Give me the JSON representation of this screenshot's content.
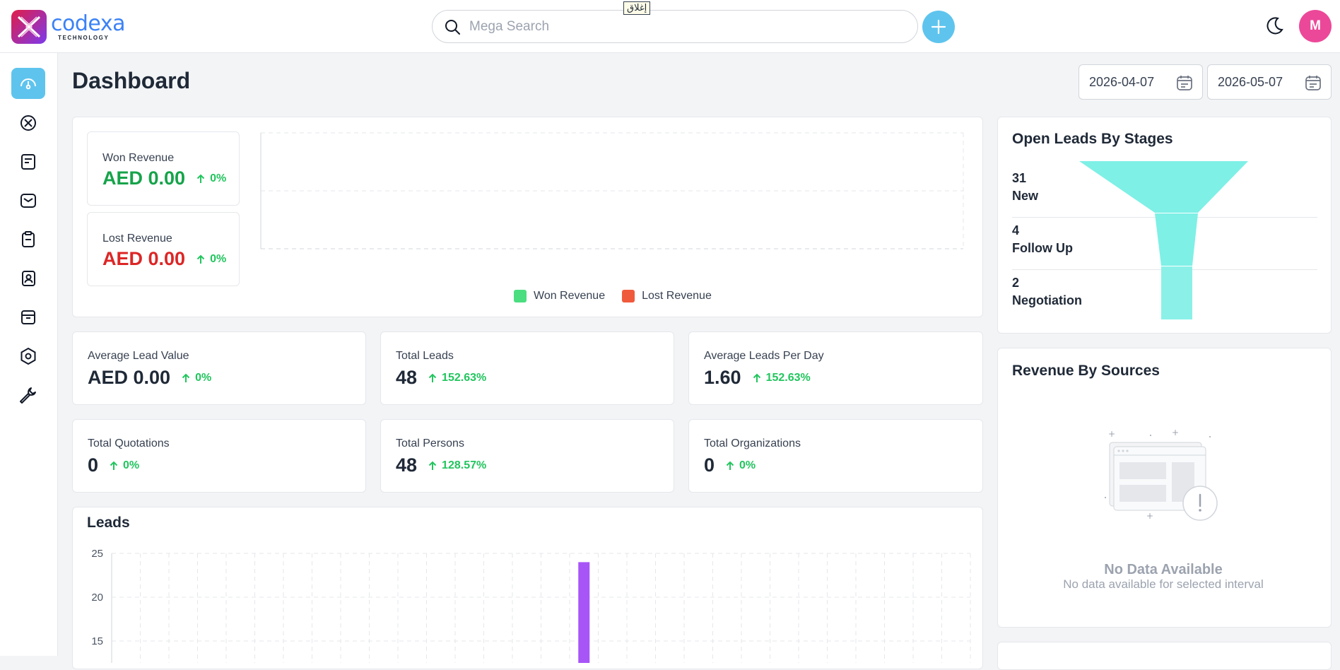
{
  "header": {
    "logo_name": "codexa",
    "logo_sub": "TECHNOLOGY",
    "search_placeholder": "Mega Search",
    "tooltip": "إغلاق",
    "avatar_initial": "M"
  },
  "sidebar": {
    "items": [
      {
        "name": "dashboard-icon",
        "active": true
      },
      {
        "name": "leads-icon",
        "active": false
      },
      {
        "name": "quotes-icon",
        "active": false
      },
      {
        "name": "mail-icon",
        "active": false
      },
      {
        "name": "activities-icon",
        "active": false
      },
      {
        "name": "contacts-icon",
        "active": false
      },
      {
        "name": "products-icon",
        "active": false
      },
      {
        "name": "settings-icon",
        "active": false
      },
      {
        "name": "configuration-icon",
        "active": false
      }
    ]
  },
  "page": {
    "title": "Dashboard",
    "start_date": "2026-04-07",
    "end_date": "2026-05-07"
  },
  "revenue": {
    "won_label": "Won Revenue",
    "won_value": "AED 0.00",
    "won_change": "0%",
    "lost_label": "Lost Revenue",
    "lost_value": "AED 0.00",
    "lost_change": "0%",
    "won_color": "#16a34a",
    "lost_color": "#dc2626",
    "legend_won": "Won Revenue",
    "legend_lost": "Lost Revenue",
    "legend_won_color": "#4ade80",
    "legend_lost_color": "#f05a3c"
  },
  "stats": [
    {
      "label": "Average Lead Value",
      "value": "AED 0.00",
      "change": "0%"
    },
    {
      "label": "Total Leads",
      "value": "48",
      "change": "152.63%"
    },
    {
      "label": "Average Leads Per Day",
      "value": "1.60",
      "change": "152.63%"
    },
    {
      "label": "Total Quotations",
      "value": "0",
      "change": "0%"
    },
    {
      "label": "Total Persons",
      "value": "48",
      "change": "128.57%"
    },
    {
      "label": "Total Organizations",
      "value": "0",
      "change": "0%"
    }
  ],
  "funnel": {
    "title": "Open Leads By Stages",
    "color": "#7ef0e6",
    "stages": [
      {
        "count": "31",
        "name": "New"
      },
      {
        "count": "4",
        "name": "Follow Up"
      },
      {
        "count": "2",
        "name": "Negotiation"
      }
    ]
  },
  "revenue_sources": {
    "title": "Revenue By Sources",
    "nodata_title": "No Data Available",
    "nodata_sub": "No data available for selected interval"
  },
  "leads": {
    "title": "Leads"
  },
  "chart_data": [
    {
      "type": "line",
      "title": "",
      "x_ticks": [
        "0",
        "1"
      ],
      "xlim": [
        0,
        1
      ],
      "series": [
        {
          "name": "Won Revenue",
          "color": "#4ade80",
          "values": []
        },
        {
          "name": "Lost Revenue",
          "color": "#f05a3c",
          "values": []
        }
      ],
      "legend": "bottom",
      "grid": true
    },
    {
      "type": "bar",
      "title": "Leads",
      "y_ticks": [
        "25",
        "20",
        "15"
      ],
      "ylim": [
        0,
        25
      ],
      "bar_color": "#a855f7",
      "categories_count": 31,
      "bars": [
        {
          "index": 17,
          "value": 24
        }
      ],
      "grid": true
    }
  ]
}
